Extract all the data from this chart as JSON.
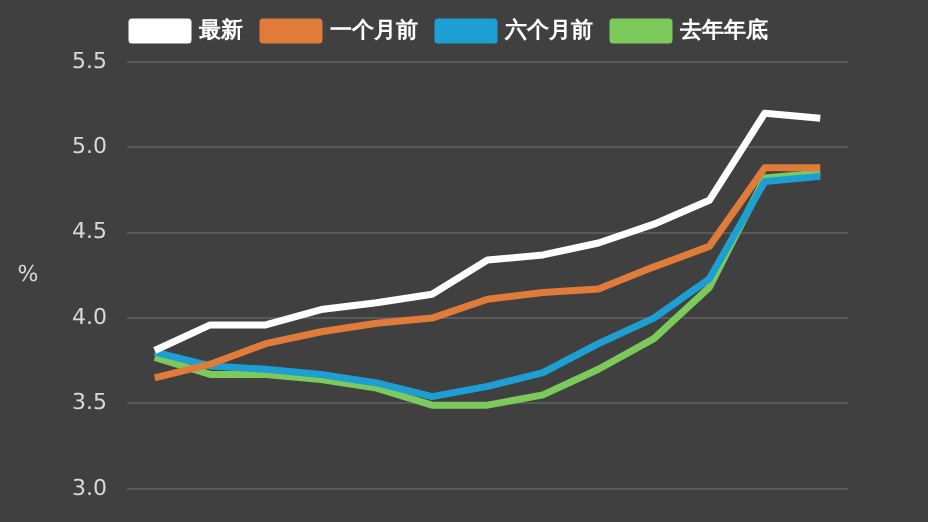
{
  "chart_data": {
    "type": "line",
    "ylabel": "%",
    "categories": [
      null,
      null,
      null,
      null,
      null,
      null,
      null,
      null,
      null,
      null,
      null,
      null,
      null
    ],
    "series": [
      {
        "name": "最新",
        "color": "#ffffff",
        "values": [
          3.81,
          3.96,
          3.96,
          4.05,
          4.09,
          4.14,
          4.34,
          4.37,
          4.44,
          4.55,
          4.69,
          5.2,
          5.17
        ]
      },
      {
        "name": "一个月前",
        "color": "#e07b39",
        "values": [
          3.65,
          3.73,
          3.85,
          3.92,
          3.97,
          4.0,
          4.11,
          4.15,
          4.17,
          4.3,
          4.42,
          4.88,
          4.88
        ]
      },
      {
        "name": "六个月前",
        "color": "#1e9fd4",
        "values": [
          3.8,
          3.72,
          3.7,
          3.67,
          3.62,
          3.54,
          3.6,
          3.68,
          3.85,
          4.0,
          4.23,
          4.8,
          4.83
        ]
      },
      {
        "name": "去年年底",
        "color": "#7cc95c",
        "values": [
          3.77,
          3.67,
          3.67,
          3.64,
          3.59,
          3.49,
          3.49,
          3.55,
          3.7,
          3.88,
          4.18,
          4.82,
          4.85
        ]
      }
    ],
    "ylim": [
      3,
      5.5
    ],
    "yticks": [
      {
        "value": 3,
        "label": "3.0"
      },
      {
        "value": 3.5,
        "label": "3.5"
      },
      {
        "value": 4,
        "label": "4.0"
      },
      {
        "value": 4.5,
        "label": "4.5"
      },
      {
        "value": 5,
        "label": "5.0"
      },
      {
        "value": 5.5,
        "label": "5.5"
      }
    ],
    "grid": "y",
    "legend": "top",
    "tick_labels": "y",
    "marker": "none",
    "line_style": "solid"
  }
}
